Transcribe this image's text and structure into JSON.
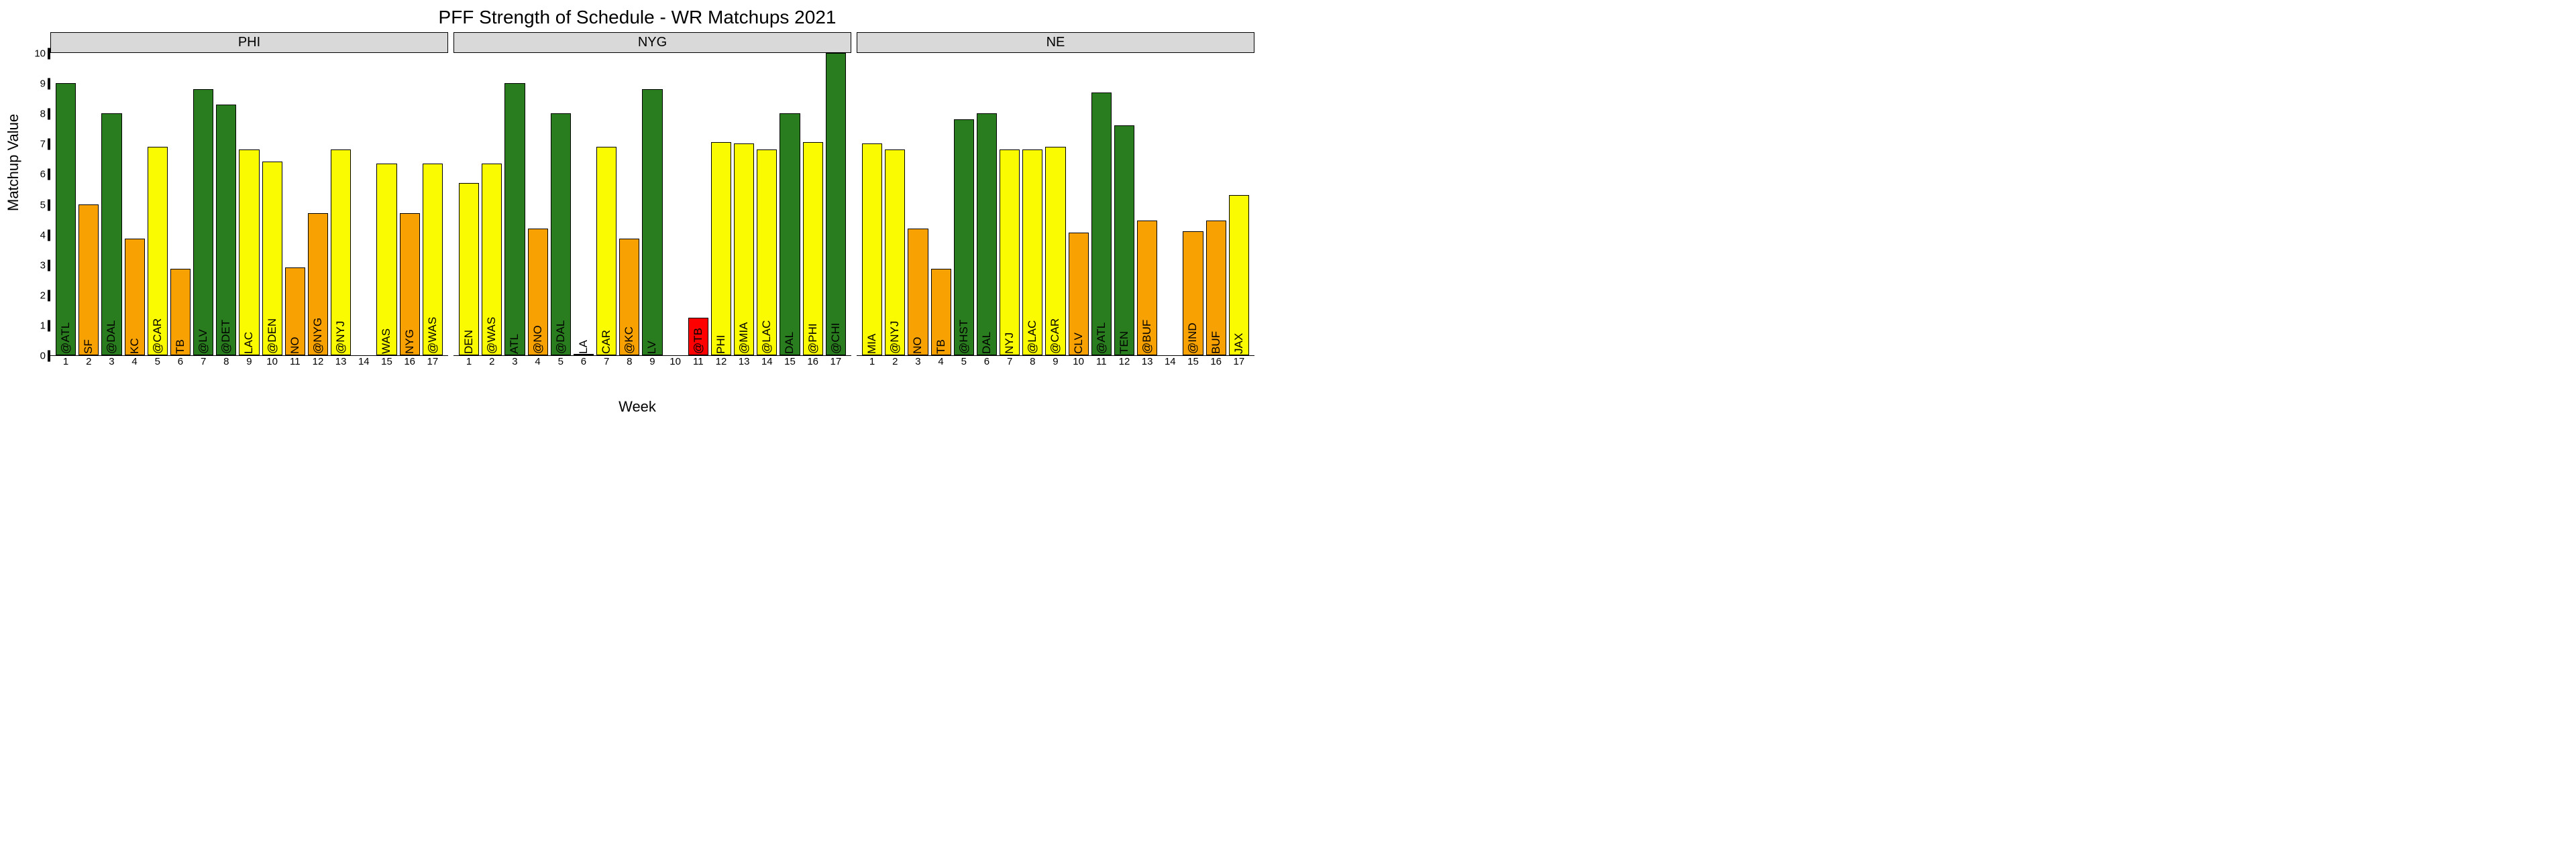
{
  "title": "PFF Strength of Schedule - WR Matchups 2021",
  "ylabel": "Matchup Value",
  "xlabel": "Week",
  "ylim": [
    0,
    10
  ],
  "yticks": [
    0,
    1,
    2,
    3,
    4,
    5,
    6,
    7,
    8,
    9,
    10
  ],
  "weeks": [
    1,
    2,
    3,
    4,
    5,
    6,
    7,
    8,
    9,
    10,
    11,
    12,
    13,
    14,
    15,
    16,
    17
  ],
  "colors": {
    "green": "#2a7d1e",
    "yellow": "#fafa00",
    "orange": "#f8a102",
    "red": "#fe0000"
  },
  "strip_bg": "#d9d9d9",
  "title_fontsize": 28,
  "label_fontsize": 22,
  "tick_fontsize": 15,
  "barlabel_fontsize": 17,
  "panels": [
    {
      "team": "PHI",
      "bars": [
        {
          "w": 1,
          "label": "@ATL",
          "v": 9.0,
          "c": "green"
        },
        {
          "w": 2,
          "label": "SF",
          "v": 5.0,
          "c": "orange"
        },
        {
          "w": 3,
          "label": "@DAL",
          "v": 8.0,
          "c": "green"
        },
        {
          "w": 4,
          "label": "KC",
          "v": 3.85,
          "c": "orange"
        },
        {
          "w": 5,
          "label": "@CAR",
          "v": 6.9,
          "c": "yellow"
        },
        {
          "w": 6,
          "label": "TB",
          "v": 2.85,
          "c": "orange"
        },
        {
          "w": 7,
          "label": "@LV",
          "v": 8.8,
          "c": "green"
        },
        {
          "w": 8,
          "label": "@DET",
          "v": 8.3,
          "c": "green"
        },
        {
          "w": 9,
          "label": "LAC",
          "v": 6.8,
          "c": "yellow"
        },
        {
          "w": 10,
          "label": "@DEN",
          "v": 6.4,
          "c": "yellow"
        },
        {
          "w": 11,
          "label": "NO",
          "v": 2.9,
          "c": "orange"
        },
        {
          "w": 12,
          "label": "@NYG",
          "v": 4.7,
          "c": "orange"
        },
        {
          "w": 13,
          "label": "@NYJ",
          "v": 6.8,
          "c": "yellow"
        },
        {
          "w": 14,
          "label": "",
          "v": null,
          "c": null
        },
        {
          "w": 15,
          "label": "WAS",
          "v": 6.35,
          "c": "yellow"
        },
        {
          "w": 16,
          "label": "NYG",
          "v": 4.7,
          "c": "orange"
        },
        {
          "w": 17,
          "label": "@WAS",
          "v": 6.35,
          "c": "yellow"
        }
      ]
    },
    {
      "team": "NYG",
      "bars": [
        {
          "w": 1,
          "label": "DEN",
          "v": 5.7,
          "c": "yellow"
        },
        {
          "w": 2,
          "label": "@WAS",
          "v": 6.35,
          "c": "yellow"
        },
        {
          "w": 3,
          "label": "ATL",
          "v": 9.0,
          "c": "green"
        },
        {
          "w": 4,
          "label": "@NO",
          "v": 4.2,
          "c": "orange"
        },
        {
          "w": 5,
          "label": "@DAL",
          "v": 8.0,
          "c": "green"
        },
        {
          "w": 6,
          "label": "LA",
          "v": 0.05,
          "c": "yellow"
        },
        {
          "w": 7,
          "label": "CAR",
          "v": 6.9,
          "c": "yellow"
        },
        {
          "w": 8,
          "label": "@KC",
          "v": 3.85,
          "c": "orange"
        },
        {
          "w": 9,
          "label": "LV",
          "v": 8.8,
          "c": "green"
        },
        {
          "w": 10,
          "label": "",
          "v": null,
          "c": null
        },
        {
          "w": 11,
          "label": "@TB",
          "v": 1.25,
          "c": "red"
        },
        {
          "w": 12,
          "label": "PHI",
          "v": 7.05,
          "c": "yellow"
        },
        {
          "w": 13,
          "label": "@MIA",
          "v": 7.0,
          "c": "yellow"
        },
        {
          "w": 14,
          "label": "@LAC",
          "v": 6.8,
          "c": "yellow"
        },
        {
          "w": 15,
          "label": "DAL",
          "v": 8.0,
          "c": "green"
        },
        {
          "w": 16,
          "label": "@PHI",
          "v": 7.05,
          "c": "yellow"
        },
        {
          "w": 17,
          "label": "@CHI",
          "v": 10.0,
          "c": "green"
        }
      ]
    },
    {
      "team": "NE",
      "bars": [
        {
          "w": 1,
          "label": "MIA",
          "v": 7.0,
          "c": "yellow"
        },
        {
          "w": 2,
          "label": "@NYJ",
          "v": 6.8,
          "c": "yellow"
        },
        {
          "w": 3,
          "label": "NO",
          "v": 4.2,
          "c": "orange"
        },
        {
          "w": 4,
          "label": "TB",
          "v": 2.85,
          "c": "orange"
        },
        {
          "w": 5,
          "label": "@HST",
          "v": 7.8,
          "c": "green"
        },
        {
          "w": 6,
          "label": "DAL",
          "v": 8.0,
          "c": "green"
        },
        {
          "w": 7,
          "label": "NYJ",
          "v": 6.8,
          "c": "yellow"
        },
        {
          "w": 8,
          "label": "@LAC",
          "v": 6.8,
          "c": "yellow"
        },
        {
          "w": 9,
          "label": "@CAR",
          "v": 6.9,
          "c": "yellow"
        },
        {
          "w": 10,
          "label": "CLV",
          "v": 4.05,
          "c": "orange"
        },
        {
          "w": 11,
          "label": "@ATL",
          "v": 8.7,
          "c": "green"
        },
        {
          "w": 12,
          "label": "TEN",
          "v": 7.6,
          "c": "green"
        },
        {
          "w": 13,
          "label": "@BUF",
          "v": 4.45,
          "c": "orange"
        },
        {
          "w": 14,
          "label": "",
          "v": null,
          "c": null
        },
        {
          "w": 15,
          "label": "@IND",
          "v": 4.1,
          "c": "orange"
        },
        {
          "w": 16,
          "label": "BUF",
          "v": 4.45,
          "c": "orange"
        },
        {
          "w": 17,
          "label": "JAX",
          "v": 5.3,
          "c": "yellow"
        }
      ]
    }
  ]
}
